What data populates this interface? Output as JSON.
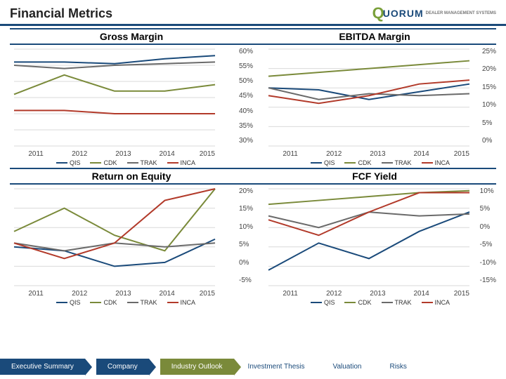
{
  "page_title": "Financial Metrics",
  "logo": {
    "initial": "Q",
    "rest": "UORUM",
    "tagline": "DEALER MANAGEMENT SYSTEMS"
  },
  "series_colors": {
    "QIS": "#1a4a7a",
    "CDK": "#7a8a3a",
    "TRAK": "#6a6a6a",
    "INCA": "#b23a2a"
  },
  "grid_color": "#d9d9d9",
  "line_width": 2,
  "background_color": "#ffffff",
  "x_categories": [
    "2011",
    "2012",
    "2013",
    "2014",
    "2015"
  ],
  "legend_order": [
    "QIS",
    "CDK",
    "TRAK",
    "INCA"
  ],
  "charts": {
    "gross_margin": {
      "title": "Gross Margin",
      "ylim": [
        30,
        60
      ],
      "ytick_step": 5,
      "y_suffix": "%",
      "series": {
        "QIS": [
          56,
          56,
          55.5,
          57,
          58
        ],
        "CDK": [
          46,
          52,
          47,
          47,
          49
        ],
        "TRAK": [
          55,
          54,
          55,
          55.5,
          56
        ],
        "INCA": [
          41,
          41,
          40,
          40,
          40
        ]
      }
    },
    "ebitda_margin": {
      "title": "EBITDA Margin",
      "ylim": [
        0,
        25
      ],
      "ytick_step": 5,
      "y_suffix": "%",
      "series": {
        "QIS": [
          15,
          14.5,
          12,
          14,
          16
        ],
        "CDK": [
          18,
          19,
          20,
          21,
          22
        ],
        "TRAK": [
          15,
          12,
          13.5,
          13,
          13.5
        ],
        "INCA": [
          13,
          11,
          13,
          16,
          17
        ]
      }
    },
    "return_on_equity": {
      "title": "Return on Equity",
      "ylim": [
        -5,
        20
      ],
      "ytick_step": 5,
      "y_suffix": "%",
      "series": {
        "QIS": [
          5,
          4,
          0,
          1,
          7
        ],
        "CDK": [
          9,
          15,
          8,
          4,
          20
        ],
        "TRAK": [
          6,
          4,
          6,
          5,
          6
        ],
        "INCA": [
          6,
          2,
          6,
          17,
          20
        ]
      }
    },
    "fcf_yield": {
      "title": "FCF Yield",
      "ylim": [
        -15,
        10
      ],
      "ytick_step": 5,
      "y_suffix": "%",
      "series": {
        "QIS": [
          -11,
          -4,
          -8,
          -1,
          4
        ],
        "CDK": [
          6,
          7,
          8,
          9,
          9.5
        ],
        "TRAK": [
          3,
          0,
          4,
          3,
          3.5
        ],
        "INCA": [
          2,
          -2,
          4,
          9,
          9
        ]
      }
    }
  },
  "nav": [
    {
      "label": "Executive Summary",
      "style": "blue"
    },
    {
      "label": "Company",
      "style": "blue"
    },
    {
      "label": "Industry Outlook",
      "style": "olive"
    },
    {
      "label": "Investment Thesis",
      "style": "plain"
    },
    {
      "label": "Valuation",
      "style": "plain"
    },
    {
      "label": "Risks",
      "style": "plain"
    }
  ]
}
